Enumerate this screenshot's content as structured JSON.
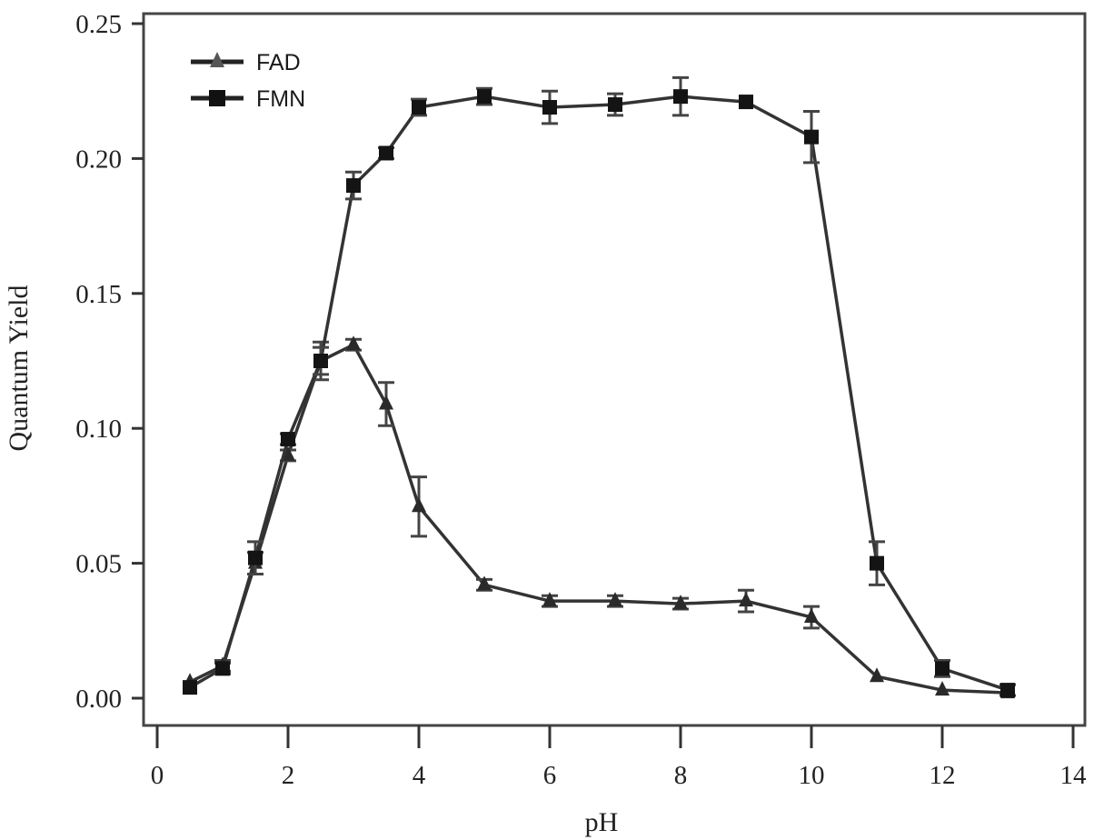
{
  "chart_data": {
    "type": "line",
    "title": "",
    "xlabel": "pH",
    "ylabel": "Quantum Yield",
    "xlim": [
      0,
      14
    ],
    "ylim": [
      0,
      0.25
    ],
    "xticks": [
      0,
      2,
      4,
      6,
      8,
      10,
      12,
      14
    ],
    "xtick_labels": [
      "0",
      "2",
      "4",
      "6",
      "8",
      "10",
      "12",
      "14"
    ],
    "yticks": [
      0.0,
      0.05,
      0.1,
      0.15,
      0.2,
      0.25
    ],
    "ytick_labels": [
      "0.00",
      "0.05",
      "0.10",
      "0.15",
      "0.20",
      "0.25"
    ],
    "grid": false,
    "legend_position": "upper left",
    "x": [
      0.5,
      1,
      1.5,
      2,
      2.5,
      3,
      3.5,
      4,
      5,
      6,
      7,
      8,
      9,
      10,
      11,
      12,
      13
    ],
    "series": [
      {
        "name": "FAD",
        "marker": "triangle",
        "color": "#2a2a2a",
        "values": [
          0.006,
          0.012,
          0.05,
          0.09,
          0.125,
          0.131,
          0.109,
          0.071,
          0.042,
          0.036,
          0.036,
          0.035,
          0.036,
          0.03,
          0.008,
          0.003,
          0.002
        ],
        "errors": [
          0.001,
          0.002,
          0.004,
          0.002,
          0.007,
          0.002,
          0.008,
          0.011,
          0.002,
          0.002,
          0.002,
          0.002,
          0.004,
          0.004,
          0.001,
          0.001,
          0.001
        ]
      },
      {
        "name": "FMN",
        "marker": "square",
        "color": "#111111",
        "values": [
          0.004,
          0.011,
          0.052,
          0.096,
          0.125,
          0.19,
          0.202,
          0.219,
          0.223,
          0.219,
          0.22,
          0.223,
          0.221,
          0.208,
          0.05,
          0.011,
          0.003
        ],
        "errors": [
          0.001,
          0.002,
          0.006,
          0.002,
          0.005,
          0.005,
          0.002,
          0.003,
          0.003,
          0.006,
          0.004,
          0.007,
          0.001,
          0.0095,
          0.008,
          0.003,
          0.002
        ]
      }
    ]
  },
  "legend": {
    "items": [
      {
        "label": "FAD",
        "marker": "triangle"
      },
      {
        "label": "FMN",
        "marker": "square"
      }
    ]
  }
}
